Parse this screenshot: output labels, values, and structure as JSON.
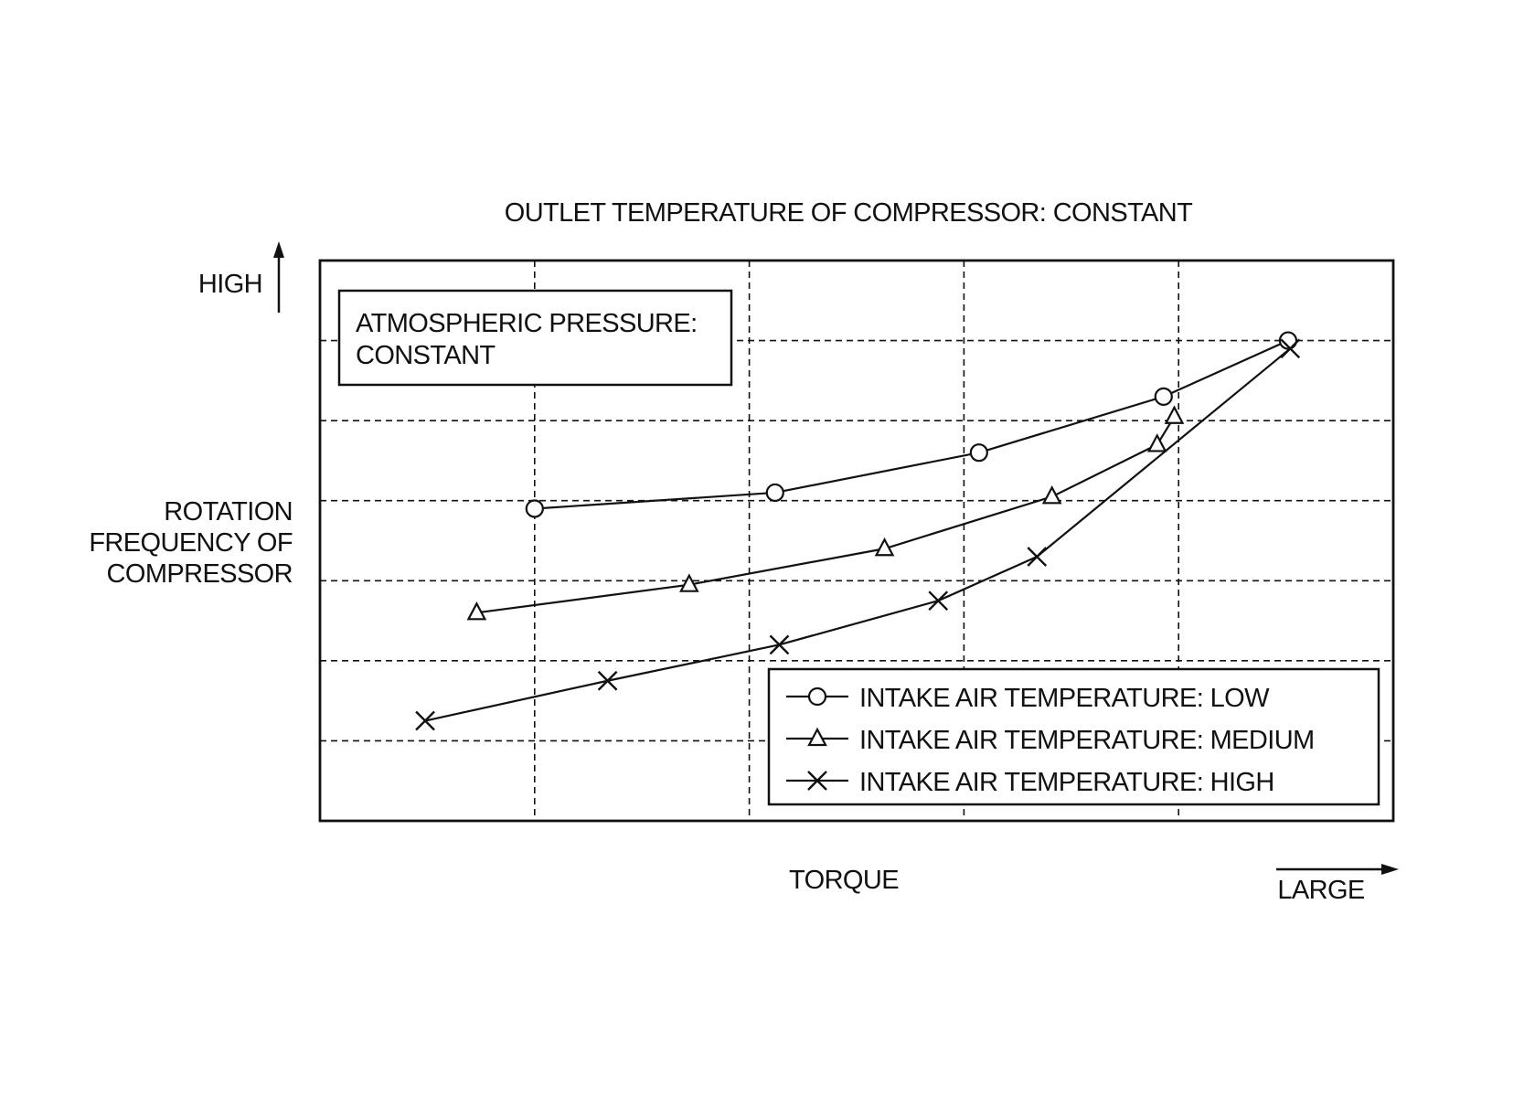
{
  "chart_data": {
    "type": "line",
    "title": "OUTLET TEMPERATURE OF COMPRESSOR: CONSTANT",
    "xlabel": "TORQUE",
    "x_direction_label": "LARGE",
    "ylabel_lines": [
      "ROTATION",
      "FREQUENCY OF",
      "COMPRESSOR"
    ],
    "y_direction_label": "HIGH",
    "condition_box_lines": [
      "ATMOSPHERIC PRESSURE:",
      "CONSTANT"
    ],
    "xlim": [
      0,
      5
    ],
    "ylim": [
      0,
      7
    ],
    "grid": true,
    "legend_position": "bottom-right",
    "series": [
      {
        "name": "INTAKE AIR TEMPERATURE: LOW",
        "marker": "circle",
        "x": [
          1.0,
          2.12,
          3.07,
          3.93,
          4.51
        ],
        "y": [
          3.9,
          4.1,
          4.6,
          5.3,
          6.0
        ]
      },
      {
        "name": "INTAKE AIR TEMPERATURE: MEDIUM",
        "marker": "triangle",
        "x": [
          0.73,
          1.72,
          2.63,
          3.41,
          3.9,
          3.98
        ],
        "y": [
          2.6,
          2.95,
          3.4,
          4.05,
          4.7,
          5.05
        ]
      },
      {
        "name": "INTAKE AIR TEMPERATURE: HIGH",
        "marker": "x",
        "x": [
          0.49,
          1.34,
          2.14,
          2.88,
          3.34,
          4.52
        ],
        "y": [
          1.25,
          1.75,
          2.2,
          2.75,
          3.3,
          5.9
        ]
      }
    ]
  }
}
